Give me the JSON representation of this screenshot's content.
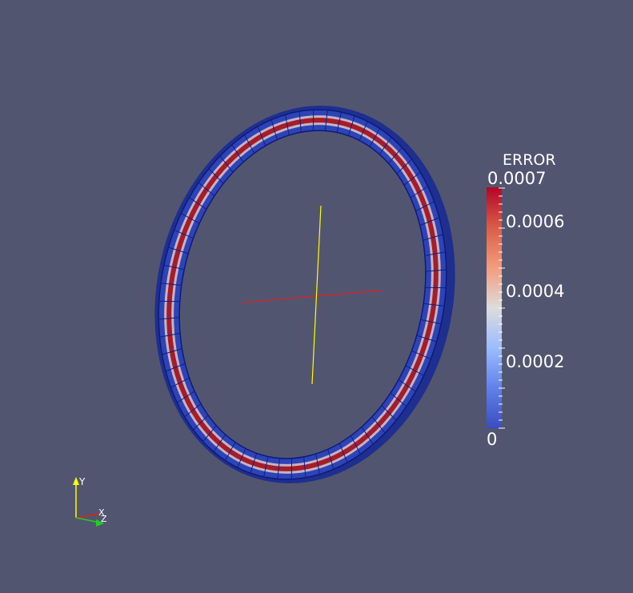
{
  "legend": {
    "title": "ERROR",
    "labels": [
      "0.0007",
      "0.0006",
      "0.0004",
      "0.0002",
      "0"
    ],
    "min_color": "#3b4cc0",
    "mid_color": "#dddcdc",
    "max_color": "#b40426"
  },
  "orientation_axes": {
    "x": "X",
    "y": "Y",
    "z": "Z"
  },
  "colors": {
    "background": "#525570",
    "ring_outer": "#2d44b8",
    "ring_band": "#a51c2a",
    "center_axis_x": "#e02020",
    "center_axis_y": "#ffff00"
  }
}
